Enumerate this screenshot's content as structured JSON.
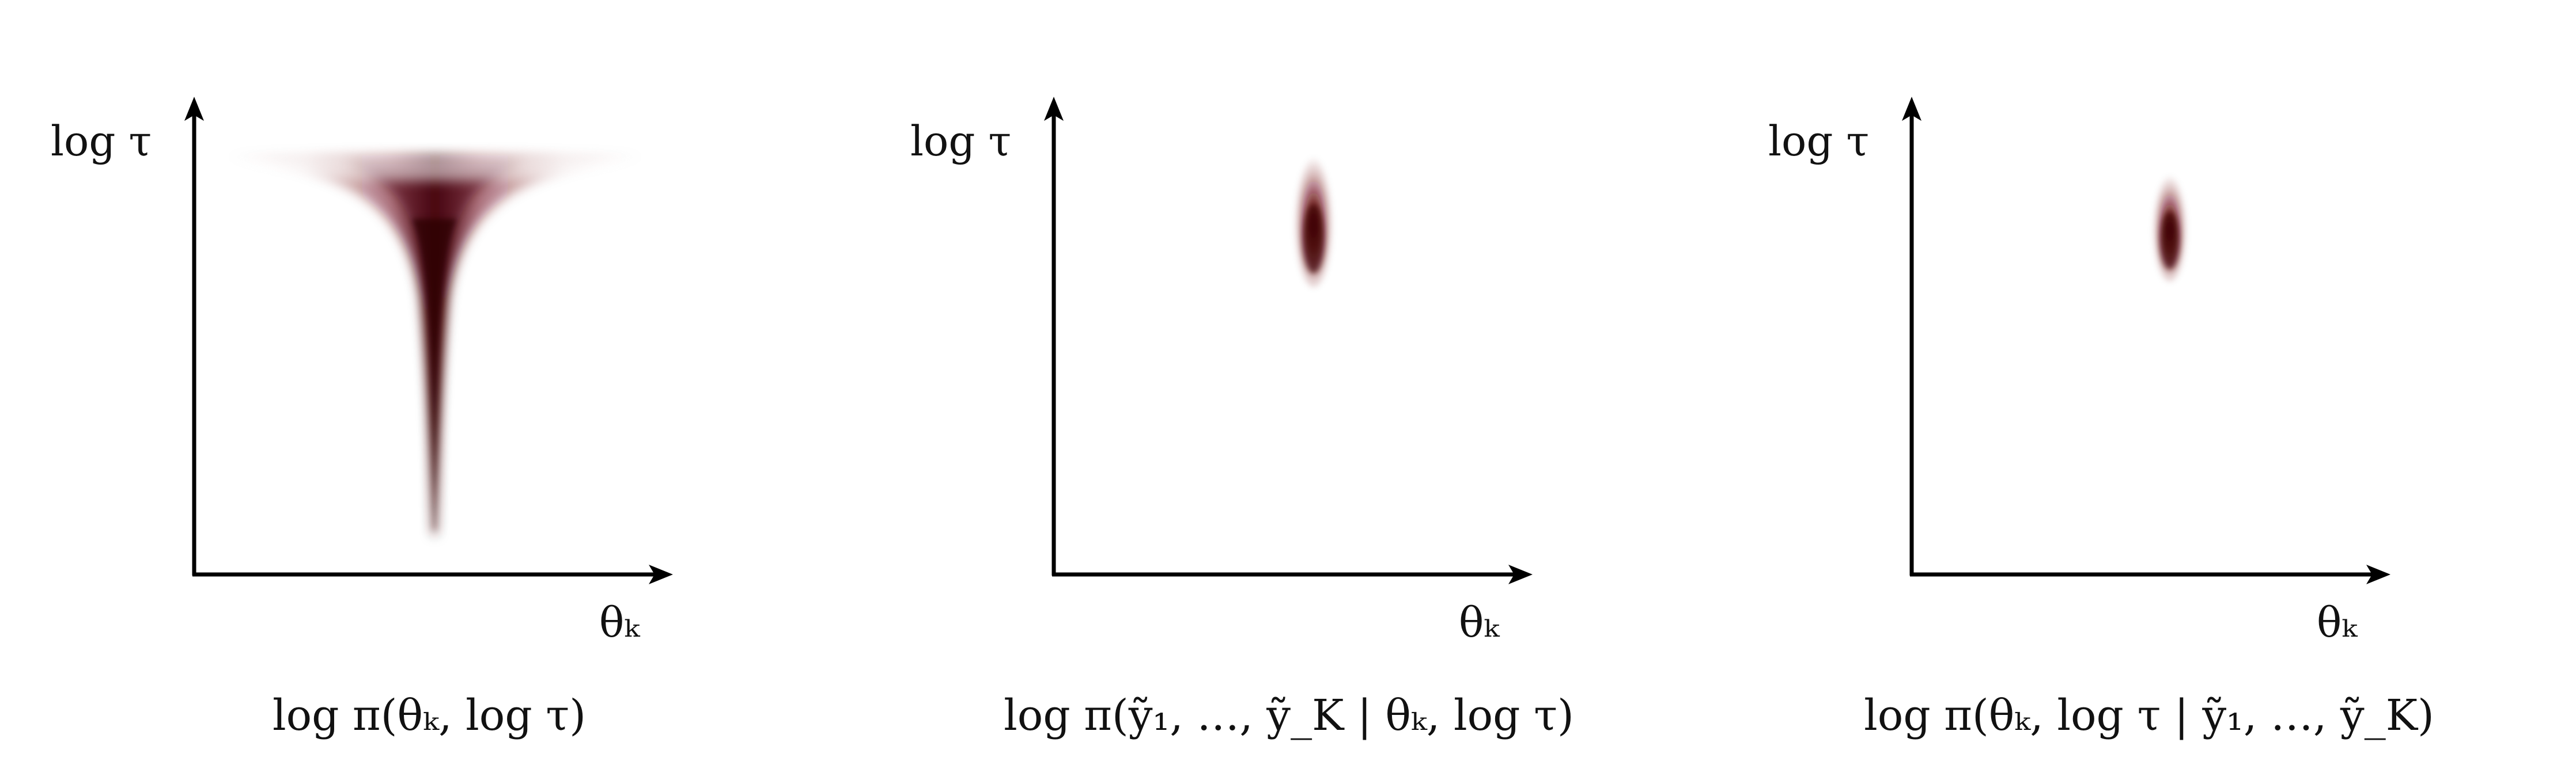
{
  "panels": [
    {
      "id": "prior",
      "y_axis_label": "log τ",
      "x_axis_label": "θₖ",
      "caption": "log π(θₖ, log τ)",
      "density": "funnel"
    },
    {
      "id": "likelihood",
      "y_axis_label": "log τ",
      "x_axis_label": "θₖ",
      "caption": "log π(ỹ₁, …, ỹ_K | θₖ, log τ)",
      "density": "narrow-blob"
    },
    {
      "id": "posterior",
      "y_axis_label": "log τ",
      "x_axis_label": "θₖ",
      "caption": "log π(θₖ, log τ | ỹ₁, …, ỹ_K)",
      "density": "narrow-blob"
    }
  ],
  "colors": {
    "density": "#6b0a10",
    "density_core": "#3a0306",
    "axis": "#000000"
  }
}
